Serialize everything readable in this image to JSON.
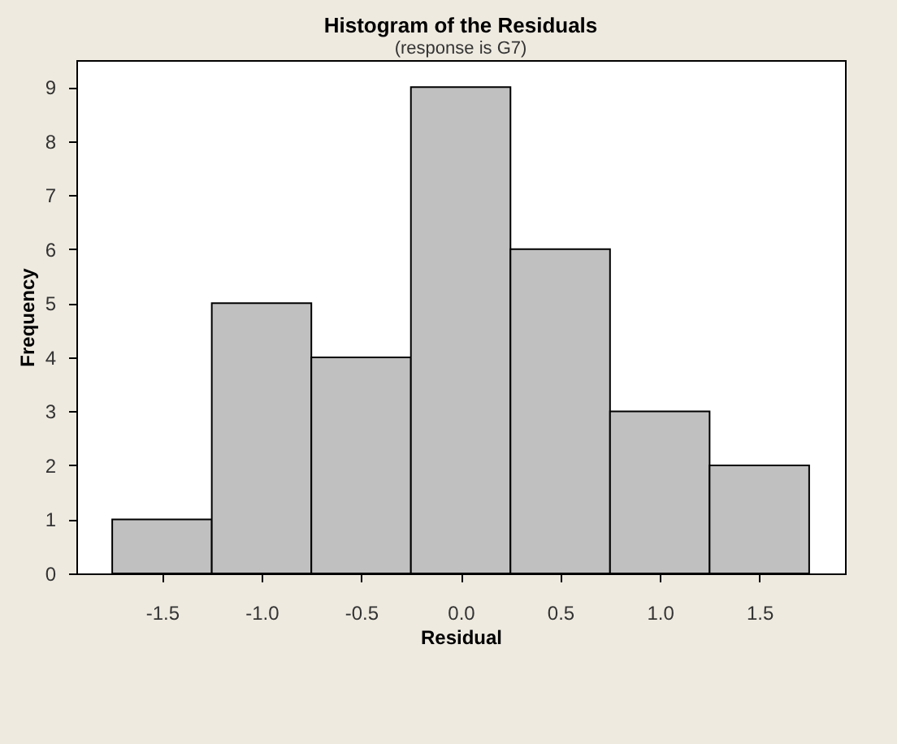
{
  "chart_data": {
    "type": "histogram",
    "title": "Histogram of the Residuals",
    "subtitle": "(response is G7)",
    "xlabel": "Residual",
    "ylabel": "Frequency",
    "bins": [
      -1.75,
      -1.25,
      -0.75,
      -0.25,
      0.25,
      0.75,
      1.25,
      1.75
    ],
    "values": [
      1,
      5,
      4,
      9,
      6,
      3,
      2
    ],
    "color": "#c0c0c0",
    "xlim": [
      -1.93,
      1.93
    ],
    "xticks": [
      {
        "value": -1.5,
        "label": "-1.5"
      },
      {
        "value": -1,
        "label": "-1.0"
      },
      {
        "value": -0.5,
        "label": "-0.5"
      },
      {
        "value": 0,
        "label": "0.0"
      },
      {
        "value": 0.5,
        "label": "0.5"
      },
      {
        "value": 1,
        "label": "1.0"
      },
      {
        "value": 1.5,
        "label": "1.5"
      }
    ],
    "ylim": [
      0,
      9.5
    ],
    "yticks": [
      0,
      1,
      2,
      3,
      4,
      5,
      6,
      7,
      8,
      9
    ],
    "grid": false
  }
}
